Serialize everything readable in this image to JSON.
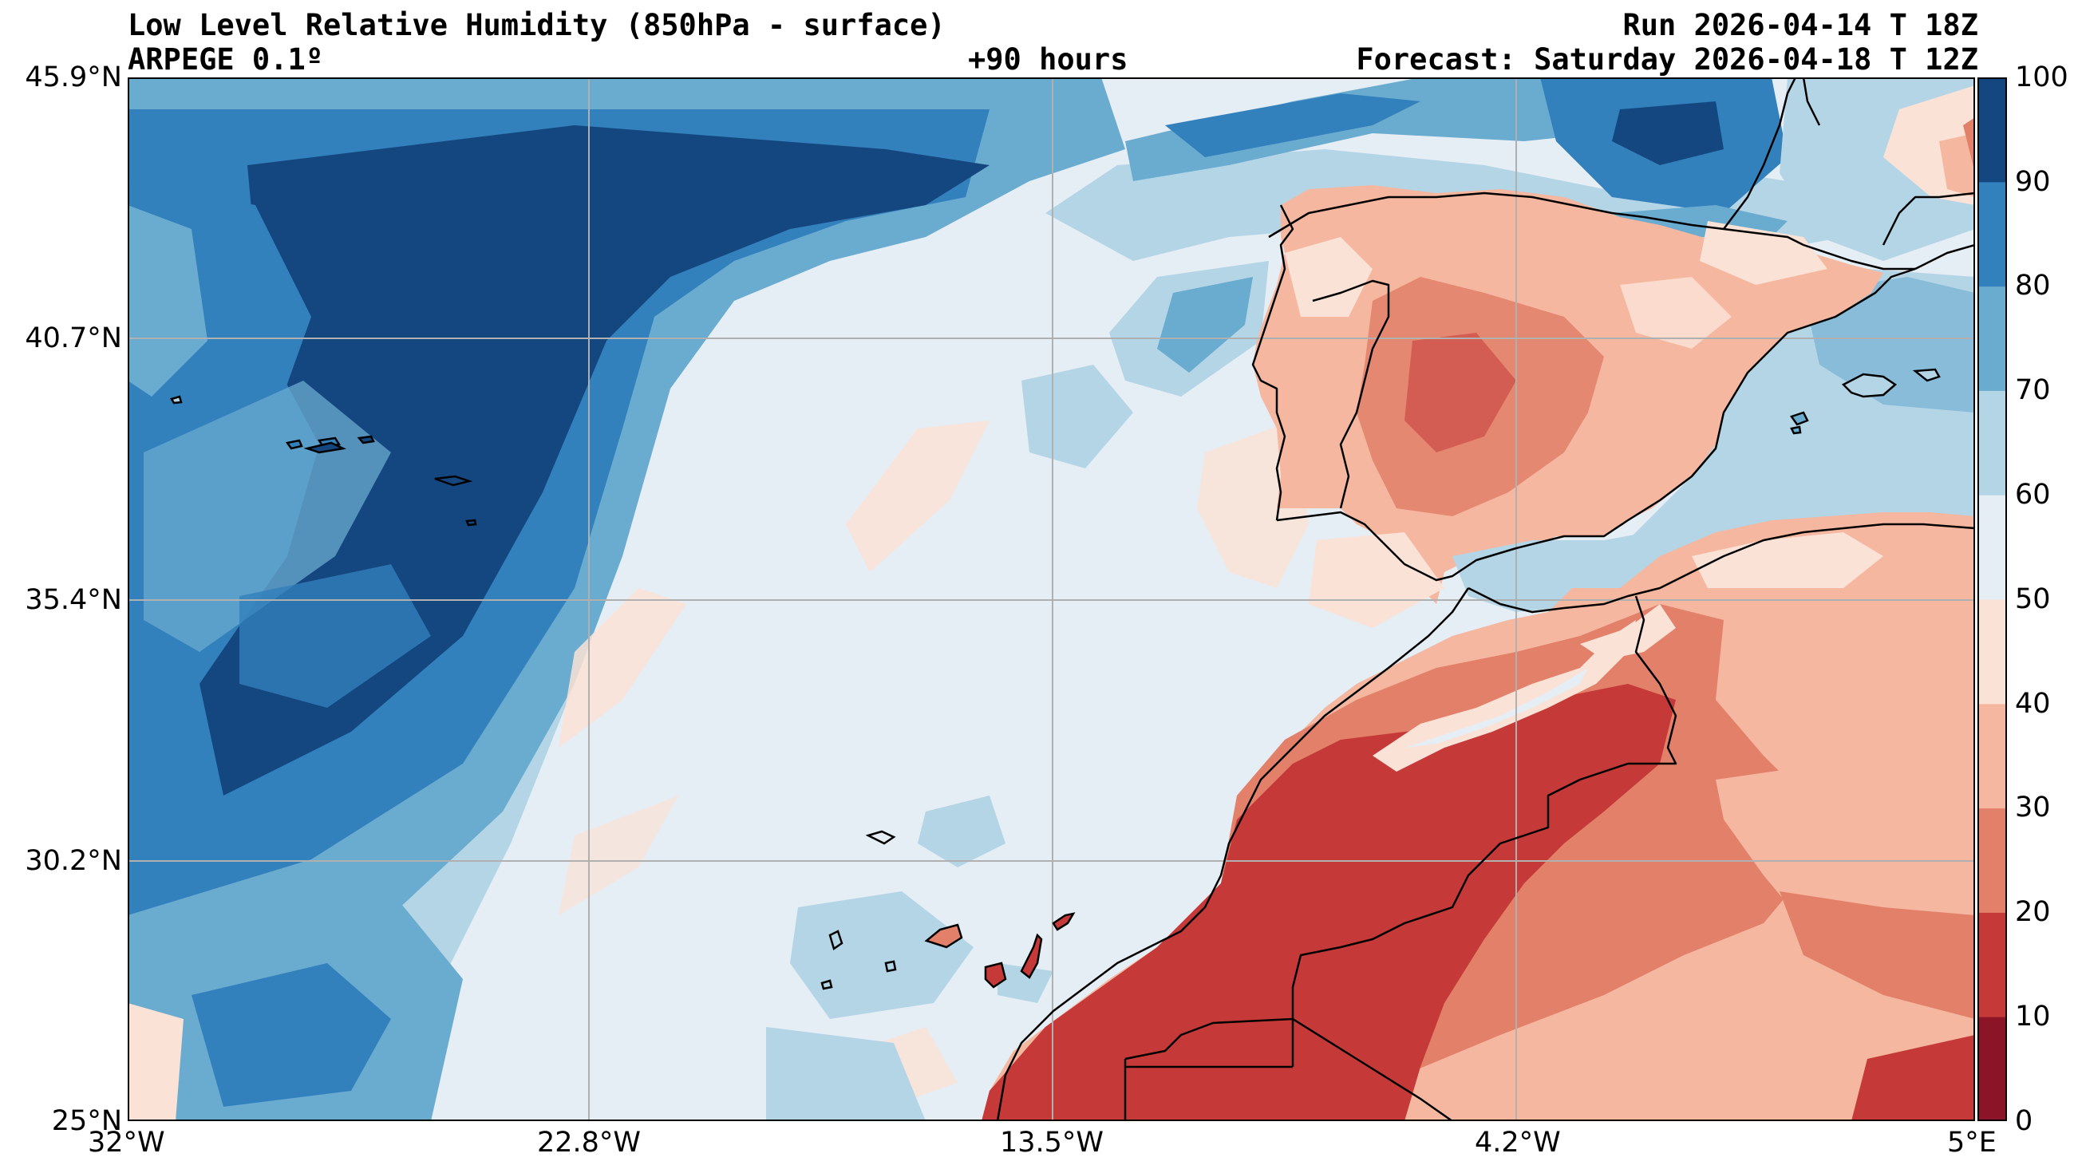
{
  "header": {
    "title": "Low Level Relative Humidity (850hPa - surface)",
    "model": "ARPEGE 0.1º",
    "lead_time": "+90 hours",
    "run": "Run 2026-04-14 T 18Z",
    "forecast": "Forecast: Saturday 2026-04-18 T 12Z"
  },
  "map": {
    "lat_labels": [
      "45.9°N",
      "40.7°N",
      "35.4°N",
      "30.2°N",
      "25°N"
    ],
    "lon_labels": [
      "32°W",
      "22.8°W",
      "13.5°W",
      "4.2°W",
      "5°E"
    ],
    "extent": {
      "lon_min": -32,
      "lon_max": 5,
      "lat_min": 25,
      "lat_max": 45.9
    }
  },
  "colorbar": {
    "ticks": [
      "100",
      "90",
      "80",
      "70",
      "60",
      "50",
      "40",
      "30",
      "20",
      "10",
      "0"
    ],
    "levels": [
      0,
      10,
      20,
      30,
      40,
      50,
      60,
      70,
      80,
      90,
      100
    ],
    "colors": [
      "#8b1426",
      "#c53a38",
      "#e2806a",
      "#f5b79f",
      "#fbe2d6",
      "#e5edf5",
      "#b4d5e6",
      "#6aabd0",
      "#3280bc",
      "#14477f"
    ]
  },
  "colors": {
    "land_dry": "#c53a38",
    "land_semi": "#e2806a",
    "ocean_humid": "#14477f",
    "coastline": "#000000",
    "grid": "#b0b0b0"
  }
}
